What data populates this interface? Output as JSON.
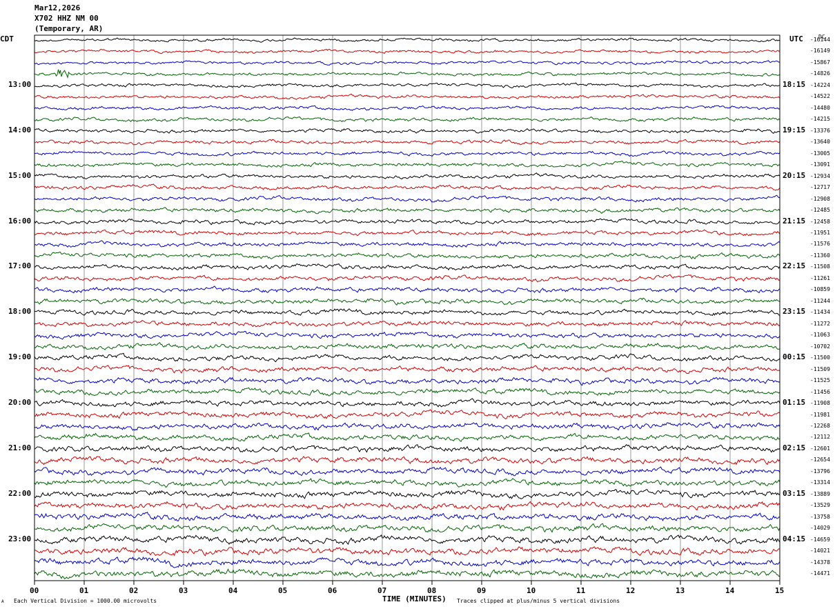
{
  "header": {
    "date": "Mar12,2026",
    "station": "X702 HHZ NM 00",
    "network": "(Temporary, AR)"
  },
  "left_tz": "CDT",
  "right_tz": "UTC",
  "dc_label": "DC",
  "footer": {
    "scale": "Each Vertical Division = 1000.00 microvolts",
    "xlabel": "TIME (MINUTES)",
    "clip_note": "Traces clipped at plus/minus 5 vertical divisions",
    "corner_mark": "A"
  },
  "colors": {
    "trace_cycle": [
      "#000000",
      "#d40000",
      "#0000c8",
      "#006400"
    ],
    "grid": "#808080",
    "frame": "#000000"
  },
  "chart_data": {
    "type": "line",
    "title": "",
    "xlabel": "TIME (MINUTES)",
    "ylabel": "",
    "x_ticks": [
      "00",
      "01",
      "02",
      "03",
      "04",
      "05",
      "06",
      "07",
      "08",
      "09",
      "10",
      "11",
      "12",
      "13",
      "14",
      "15"
    ],
    "xlim": [
      0,
      15
    ],
    "rows": 48,
    "left_hour_labels": [
      "13:00",
      "14:00",
      "15:00",
      "16:00",
      "17:00",
      "18:00",
      "19:00",
      "20:00",
      "21:00",
      "22:00",
      "23:00"
    ],
    "right_hour_labels": [
      "18:15",
      "19:15",
      "20:15",
      "21:15",
      "22:15",
      "23:15",
      "00:15",
      "01:15",
      "02:15",
      "03:15",
      "04:15"
    ],
    "dc_offsets": [
      "-16144",
      "-16149",
      "-15867",
      "-14826",
      "-14224",
      "-14522",
      "-14480",
      "-14215",
      "-13376",
      "-13640",
      "-13005",
      "-13091",
      "-12934",
      "-12717",
      "-12908",
      "-12485",
      "-12458",
      "-11951",
      "-11576",
      "-11360",
      "-11508",
      "-11261",
      "-10859",
      "-11244",
      "-11434",
      "-11272",
      "-11063",
      "-10702",
      "-11500",
      "-11509",
      "-11525",
      "-11456",
      "-11908",
      "-11981",
      "-12268",
      "-12112",
      "-12601",
      "-12654",
      "-13796",
      "-13314",
      "-13889",
      "-13529",
      "-13758",
      "-14029",
      "-14659",
      "-14021",
      "-14378",
      "-14471"
    ]
  }
}
